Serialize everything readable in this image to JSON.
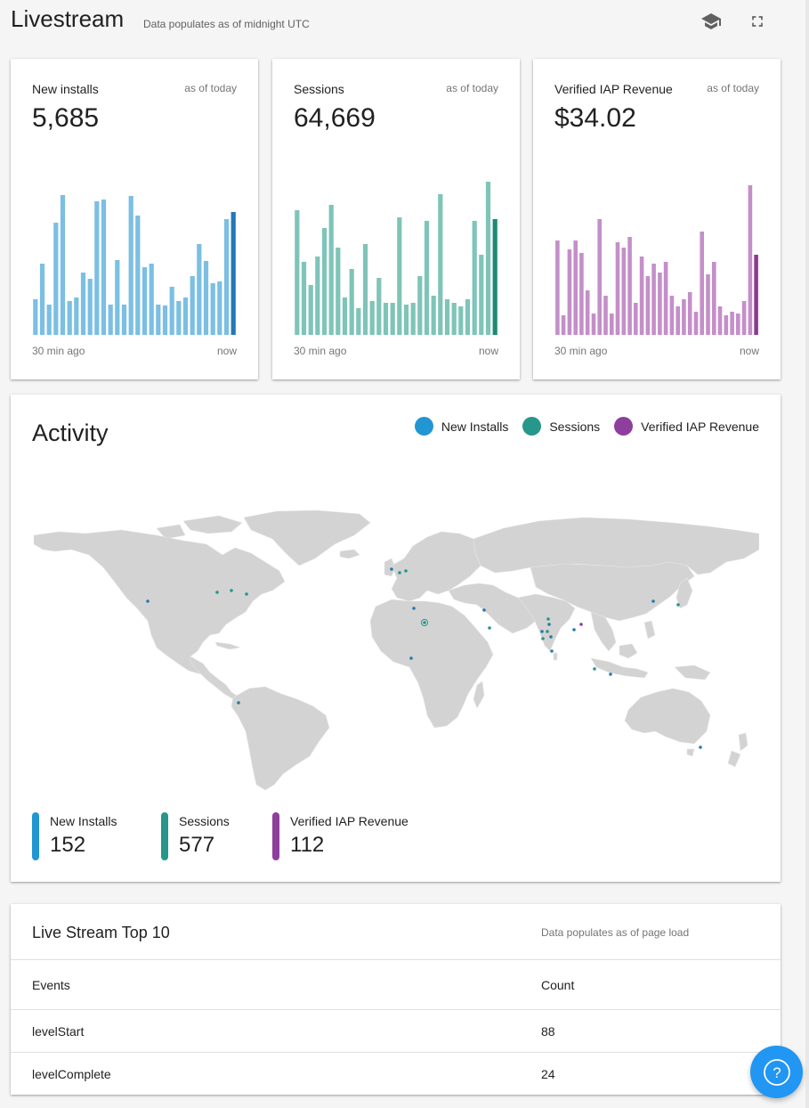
{
  "header": {
    "title": "Livestream",
    "subtitle": "Data populates as of midnight UTC",
    "icons": [
      "school-icon",
      "fullscreen-icon"
    ]
  },
  "kpis": [
    {
      "title": "New installs",
      "as_of": "as of today",
      "value": "5,685",
      "start_label": "30 min ago",
      "end_label": "now",
      "color": "#7bbfe3",
      "last_color": "#2178b9",
      "bars": [
        40,
        80,
        34,
        126,
        157,
        38,
        42,
        70,
        63,
        150,
        152,
        34,
        84,
        34,
        156,
        134,
        76,
        80,
        34,
        33,
        54,
        38,
        42,
        66,
        102,
        83,
        58,
        60,
        130,
        138
      ]
    },
    {
      "title": "Sessions",
      "as_of": "as of today",
      "value": "64,669",
      "start_label": "30 min ago",
      "end_label": "now",
      "color": "#7fc4b8",
      "last_color": "#1d8a75",
      "bars": [
        140,
        82,
        56,
        88,
        120,
        146,
        98,
        42,
        74,
        30,
        102,
        38,
        64,
        36,
        36,
        132,
        34,
        36,
        66,
        128,
        44,
        158,
        40,
        36,
        32,
        40,
        128,
        90,
        172,
        130
      ]
    },
    {
      "title": "Verified IAP Revenue",
      "as_of": "as of today",
      "value": "$34.02",
      "start_label": "30 min ago",
      "end_label": "now",
      "color": "#c48fc9",
      "last_color": "#8e3b8f",
      "bars": [
        106,
        22,
        96,
        106,
        92,
        50,
        24,
        130,
        44,
        24,
        104,
        98,
        110,
        36,
        88,
        66,
        80,
        70,
        82,
        44,
        32,
        40,
        48,
        26,
        116,
        68,
        82,
        32,
        22,
        26,
        24,
        38,
        168,
        90
      ]
    }
  ],
  "activity": {
    "title": "Activity",
    "legend": [
      {
        "label": "New Installs",
        "color": "#2196d3"
      },
      {
        "label": "Sessions",
        "color": "#26978a"
      },
      {
        "label": "Verified IAP Revenue",
        "color": "#8e3e9c"
      }
    ],
    "totals": [
      {
        "label": "New Installs",
        "value": "152",
        "color": "#2196d3"
      },
      {
        "label": "Sessions",
        "value": "577",
        "color": "#26978a"
      },
      {
        "label": "Verified IAP Revenue",
        "value": "112",
        "color": "#8e3e9c"
      }
    ]
  },
  "top10": {
    "title": "Live Stream Top 10",
    "note": "Data populates as of page load",
    "columns": [
      "Events",
      "Count"
    ],
    "rows": [
      {
        "event": "levelStart",
        "count": "88"
      },
      {
        "event": "levelComplete",
        "count": "24"
      }
    ]
  },
  "help": {
    "label": "?"
  }
}
